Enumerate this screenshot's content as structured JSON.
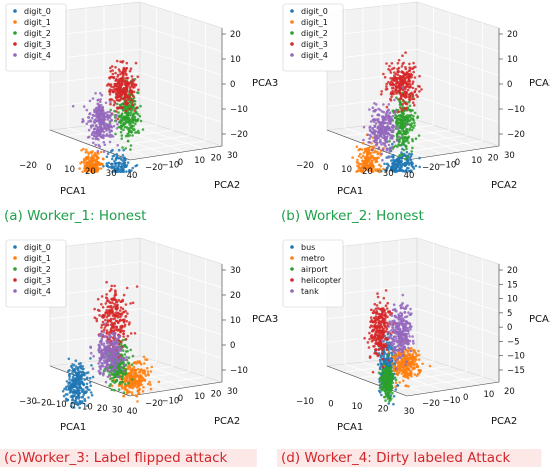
{
  "colors": {
    "blue": "#1f77b4",
    "orange": "#ff7f0e",
    "green": "#2ca02c",
    "red": "#d62728",
    "purple": "#9467bd",
    "caption_green": "#1ea04a",
    "caption_red": "#d0262a",
    "highlight_red": "#fde8e8"
  },
  "chart_data": [
    {
      "type": "scatter",
      "caption": "(a) Worker_1: Honest",
      "xlabel": "PCA1",
      "ylabel": "PCA2",
      "zlabel": "PCA3",
      "x_ticks": [
        "−20",
        "0",
        "10",
        "20",
        "30",
        "40"
      ],
      "y_ticks": [
        "−20",
        "−10",
        "0",
        "10",
        "20",
        "30"
      ],
      "z_ticks": [
        "20",
        "10",
        "0",
        "−10",
        "−20"
      ],
      "legend": [
        "digit_0",
        "digit_1",
        "digit_2",
        "digit_3",
        "digit_4"
      ],
      "series": [
        {
          "name": "digit_0",
          "color": "blue",
          "center": [
            22,
            -12,
            -14
          ],
          "spread": [
            6,
            6,
            3.5
          ]
        },
        {
          "name": "digit_1",
          "color": "orange",
          "center": [
            -4,
            -10,
            -14
          ],
          "spread": [
            3,
            4,
            3
          ]
        },
        {
          "name": "digit_2",
          "color": "green",
          "center": [
            12,
            10,
            6
          ],
          "spread": [
            4,
            4,
            5
          ]
        },
        {
          "name": "digit_3",
          "color": "red",
          "center": [
            4,
            14,
            14
          ],
          "spread": [
            4.5,
            4.5,
            4
          ]
        },
        {
          "name": "digit_4",
          "color": "purple",
          "center": [
            -4,
            0,
            2
          ],
          "spread": [
            5,
            4,
            4
          ]
        }
      ]
    },
    {
      "type": "scatter",
      "caption": "(b) Worker_2: Honest",
      "xlabel": "PCA1",
      "ylabel": "PCA2",
      "zlabel": "PCA3",
      "x_ticks": [
        "−20",
        "0",
        "10",
        "20",
        "30",
        "40"
      ],
      "y_ticks": [
        "−20",
        "−10",
        "0",
        "10",
        "20",
        "30"
      ],
      "z_ticks": [
        "20",
        "10",
        "0",
        "−10",
        "−20"
      ],
      "legend": [
        "digit_0",
        "digit_1",
        "digit_2",
        "digit_3",
        "digit_4"
      ],
      "series": [
        {
          "name": "digit_0",
          "color": "blue",
          "center": [
            24,
            -10,
            -12
          ],
          "spread": [
            6,
            6,
            3.5
          ]
        },
        {
          "name": "digit_1",
          "color": "orange",
          "center": [
            -6,
            -8,
            -14
          ],
          "spread": [
            3,
            5,
            4
          ]
        },
        {
          "name": "digit_2",
          "color": "green",
          "center": [
            16,
            4,
            2
          ],
          "spread": [
            4,
            4,
            5
          ]
        },
        {
          "name": "digit_3",
          "color": "red",
          "center": [
            6,
            14,
            16
          ],
          "spread": [
            5,
            5,
            4
          ]
        },
        {
          "name": "digit_4",
          "color": "purple",
          "center": [
            0,
            0,
            0
          ],
          "spread": [
            5,
            5,
            4
          ]
        }
      ]
    },
    {
      "type": "scatter",
      "caption": "(c)Worker_3: Label flipped attack",
      "xlabel": "PCA1",
      "ylabel": "PCA2",
      "zlabel": "PCA3",
      "x_ticks": [
        "−30",
        "−20",
        "−10",
        "0",
        "10",
        "20",
        "30",
        "40"
      ],
      "y_ticks": [
        "−20",
        "−10",
        "0",
        "10",
        "20",
        "30"
      ],
      "z_ticks": [
        "30",
        "20",
        "10",
        "0",
        "−10"
      ],
      "legend": [
        "digit_0",
        "digit_1",
        "digit_2",
        "digit_3",
        "digit_4"
      ],
      "series": [
        {
          "name": "digit_0",
          "color": "blue",
          "center": [
            -18,
            -10,
            -8
          ],
          "spread": [
            4,
            4,
            4
          ]
        },
        {
          "name": "digit_1",
          "color": "orange",
          "center": [
            22,
            4,
            -4
          ],
          "spread": [
            6,
            5,
            3
          ]
        },
        {
          "name": "digit_2",
          "color": "green",
          "center": [
            6,
            6,
            0
          ],
          "spread": [
            4,
            4,
            4
          ]
        },
        {
          "name": "digit_3",
          "color": "red",
          "center": [
            -2,
            12,
            16
          ],
          "spread": [
            5,
            5,
            6
          ]
        },
        {
          "name": "digit_4",
          "color": "purple",
          "center": [
            2,
            2,
            4
          ],
          "spread": [
            5,
            4,
            4
          ]
        }
      ]
    },
    {
      "type": "scatter",
      "caption": "(d) Worker_4: Dirty labeled Attack",
      "xlabel": "PCA1",
      "ylabel": "PCA2",
      "zlabel": "PCA3",
      "x_ticks": [
        "−10",
        "0",
        "10",
        "20",
        "30"
      ],
      "y_ticks": [
        "−20",
        "−10",
        "0",
        "10",
        "20"
      ],
      "z_ticks": [
        "20",
        "15",
        "10",
        "5",
        "0",
        "−5",
        "−10",
        "−15"
      ],
      "legend": [
        "bus",
        "metro",
        "airport",
        "helicopter",
        "tank"
      ],
      "series": [
        {
          "name": "bus",
          "color": "blue",
          "center": [
            6,
            -2,
            0
          ],
          "spread": [
            3,
            3,
            5
          ]
        },
        {
          "name": "metro",
          "color": "orange",
          "center": [
            18,
            4,
            2
          ],
          "spread": [
            6,
            3,
            3
          ]
        },
        {
          "name": "airport",
          "color": "green",
          "center": [
            4,
            0,
            -6
          ],
          "spread": [
            2,
            2,
            3
          ]
        },
        {
          "name": "helicopter",
          "color": "red",
          "center": [
            -8,
            6,
            12
          ],
          "spread": [
            3,
            4,
            5
          ]
        },
        {
          "name": "tank",
          "color": "purple",
          "center": [
            10,
            8,
            12
          ],
          "spread": [
            4,
            4,
            5
          ]
        }
      ]
    }
  ]
}
